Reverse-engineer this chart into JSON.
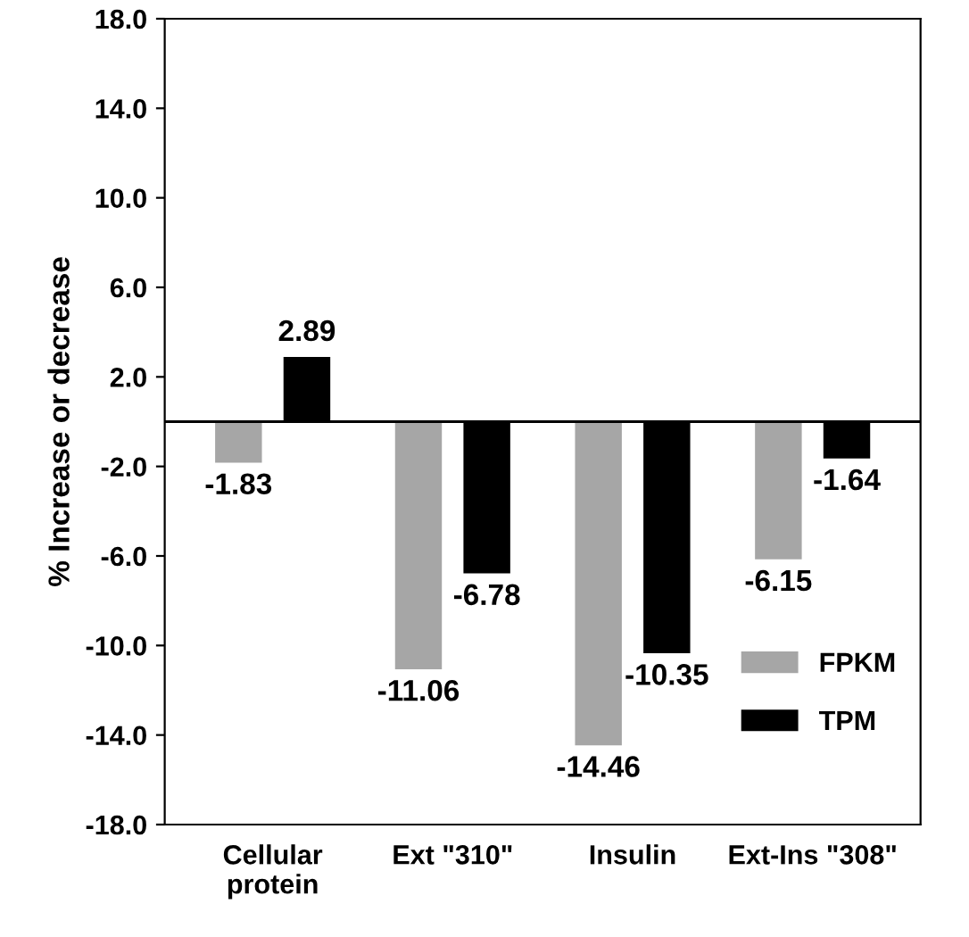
{
  "chart_data": {
    "type": "bar",
    "ylabel": "% Increase or decrease",
    "categories": [
      "Cellular\nprotein",
      "Ext \"310\"",
      "Insulin",
      "Ext-Ins \"308\""
    ],
    "series": [
      {
        "name": "FPKM",
        "color": "#a6a6a6",
        "values": [
          -1.83,
          -11.06,
          -14.46,
          -6.15
        ]
      },
      {
        "name": "TPM",
        "color": "#000000",
        "values": [
          2.89,
          -6.78,
          -10.35,
          -1.64
        ]
      }
    ],
    "ylim": [
      -18,
      18
    ],
    "yticks": [
      {
        "value": -18,
        "label": "-18.0"
      },
      {
        "value": -14,
        "label": "-14.0"
      },
      {
        "value": -10,
        "label": "-10.0"
      },
      {
        "value": -6,
        "label": "-6.0"
      },
      {
        "value": -2,
        "label": "-2.0"
      },
      {
        "value": 2,
        "label": "2.0"
      },
      {
        "value": 6,
        "label": "6.0"
      },
      {
        "value": 10,
        "label": "10.0"
      },
      {
        "value": 14,
        "label": "14.0"
      },
      {
        "value": 18,
        "label": "18.0"
      }
    ],
    "data_labels": true,
    "grid": false,
    "legend": "bottom right"
  }
}
